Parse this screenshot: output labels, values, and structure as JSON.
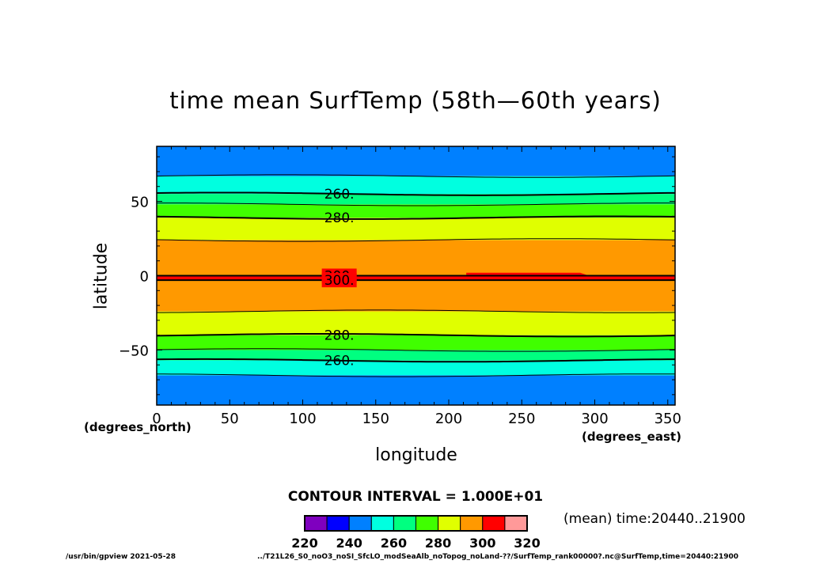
{
  "chart_data": {
    "type": "heatmap",
    "title": "time mean SurfTemp (58th—60th years)",
    "xlabel": "longitude",
    "ylabel": "latitude",
    "x_unit": "(degrees_east)",
    "y_unit": "(degrees_north)",
    "xlim": [
      0,
      355
    ],
    "ylim": [
      -87,
      87
    ],
    "x_ticks": [
      "0",
      "50",
      "100",
      "150",
      "200",
      "250",
      "300",
      "350"
    ],
    "y_ticks": [
      "50",
      "0",
      "−50"
    ],
    "contour_interval_text": "CONTOUR INTERVAL = 1.000E+01",
    "levels": [
      220,
      240,
      260,
      280,
      300,
      320
    ],
    "colorbar_labels": [
      "220",
      "240",
      "260",
      "280",
      "300",
      "320"
    ],
    "colors": [
      "#7f00bf",
      "#0000ff",
      "#0080ff",
      "#00ffe0",
      "#00ff80",
      "#40ff00",
      "#e0ff00",
      "#ff9900",
      "#ff0000",
      "#ff9999"
    ],
    "bands": [
      {
        "from": -87,
        "to": -67,
        "range": "240-250",
        "color": "#0080ff"
      },
      {
        "from": -67,
        "to": -57,
        "range": "250-260",
        "color": "#00ffe0"
      },
      {
        "from": -57,
        "to": -50,
        "range": "260-265",
        "color": "#00ff80"
      },
      {
        "from": -50,
        "to": -40,
        "range": "265-280",
        "color": "#40ff00"
      },
      {
        "from": -40,
        "to": -24,
        "range": "280-290",
        "color": "#e0ff00"
      },
      {
        "from": -24,
        "to": -3,
        "range": "290-300",
        "color": "#ff9900"
      },
      {
        "from": -3,
        "to": 0,
        "range": "300-305",
        "color": "#ff0000"
      },
      {
        "from": 0,
        "to": 24,
        "range": "290-300",
        "color": "#ff9900"
      },
      {
        "from": 24,
        "to": 39,
        "range": "280-290",
        "color": "#e0ff00"
      },
      {
        "from": 39,
        "to": 48,
        "range": "265-280",
        "color": "#40ff00"
      },
      {
        "from": 48,
        "to": 55,
        "range": "260-265",
        "color": "#00ff80"
      },
      {
        "from": 55,
        "to": 67,
        "range": "250-260",
        "color": "#00ffe0"
      },
      {
        "from": 67,
        "to": 87,
        "range": "240-250",
        "color": "#0080ff"
      }
    ],
    "contour_labels": [
      {
        "text": "260.",
        "lon": 125,
        "lat": 55
      },
      {
        "text": "280.",
        "lon": 125,
        "lat": 39
      },
      {
        "text": "300.",
        "lon": 125,
        "lat": 0
      },
      {
        "text": "300.",
        "lon": 125,
        "lat": -3
      },
      {
        "text": "280.",
        "lon": 125,
        "lat": -40
      },
      {
        "text": "260.",
        "lon": 125,
        "lat": -57
      }
    ],
    "grid": false,
    "legend": "bottom"
  },
  "meta": {
    "mean_time": "(mean) time:20440..21900",
    "footer_left": "/usr/bin/gpview   2021-05-28",
    "footer_right": "../T21L26_S0_noO3_noSI_SfcLO_modSeaAlb_noTopog_noLand-??/SurfTemp_rank00000?.nc@SurfTemp,time=20440:21900"
  }
}
